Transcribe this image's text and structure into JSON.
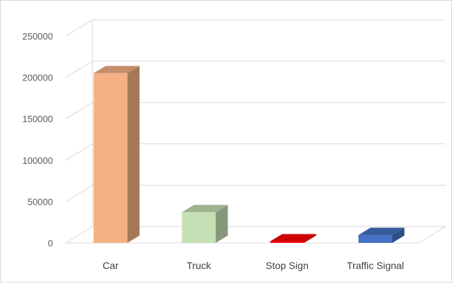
{
  "chart_data": {
    "type": "bar",
    "categories": [
      "Car",
      "Truck",
      "Stop Sign",
      "Traffic Signal"
    ],
    "values": [
      205000,
      37000,
      1800,
      9500
    ],
    "colors": [
      "#f4b183",
      "#c5e0b4",
      "#ff0000",
      "#4472c4"
    ],
    "ylim": [
      0,
      250000
    ],
    "yticks": [
      "0",
      "50000",
      "100000",
      "150000",
      "200000",
      "250000"
    ],
    "grid": true,
    "style": "3d-column"
  }
}
